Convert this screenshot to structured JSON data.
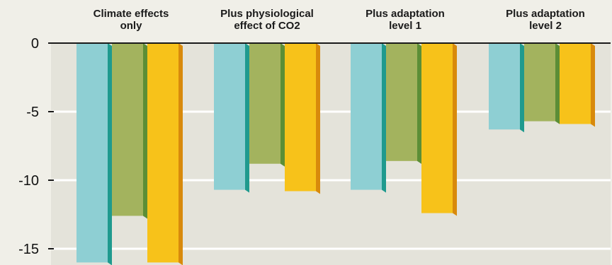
{
  "chart_data": {
    "type": "bar",
    "categories": [
      [
        "Climate effects",
        "only"
      ],
      [
        "Plus physiological",
        "effect of CO2"
      ],
      [
        "Plus adaptation",
        "level 1"
      ],
      [
        "Plus adaptation",
        "level 2"
      ]
    ],
    "series": [
      {
        "values": [
          -16.0,
          -10.7,
          -10.7,
          -6.3
        ]
      },
      {
        "values": [
          -12.6,
          -8.8,
          -8.6,
          -5.7
        ]
      },
      {
        "values": [
          -16.0,
          -10.8,
          -12.4,
          -5.9
        ]
      }
    ],
    "ylim": [
      -16,
      0
    ],
    "yticks": [
      0,
      -5,
      -10,
      -15
    ],
    "grid": true,
    "colors": {
      "series_face": [
        "#8ecfd3",
        "#a3b35e",
        "#f7c21a"
      ],
      "series_side": [
        "#1f9a8e",
        "#5c8e36",
        "#d88a0c"
      ],
      "plot_background": "#e4e3da",
      "gridline": "#ffffff",
      "axis": "#1a1a1a"
    }
  }
}
